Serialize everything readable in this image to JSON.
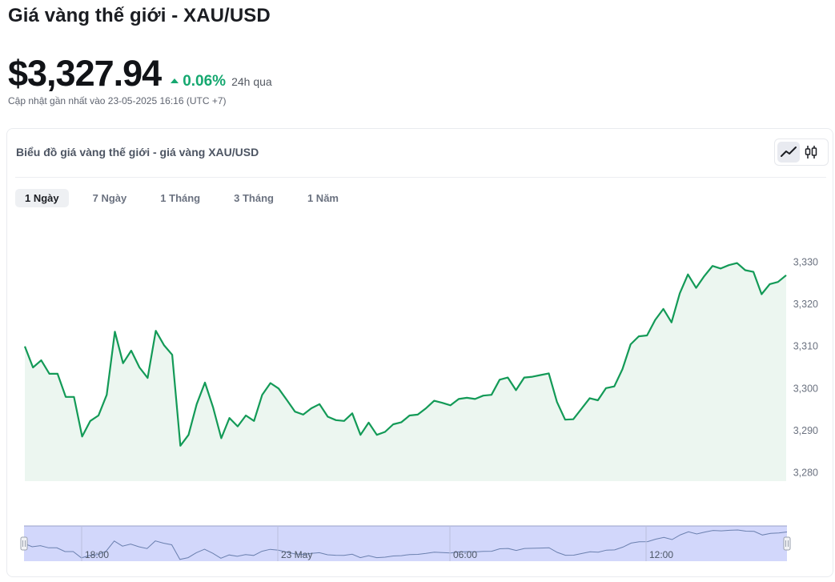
{
  "header": {
    "title": "Giá vàng thế giới - XAU/USD",
    "price": "$3,327.94",
    "change": "0.06%",
    "period": "24h qua",
    "updated": "Cập nhật gần nhất vào 23-05-2025 16:16 (UTC +7)"
  },
  "card": {
    "title": "Biểu đồ giá vàng thế giới - giá vàng XAU/USD",
    "tabs": [
      "1 Ngày",
      "7 Ngày",
      "1 Tháng",
      "3 Tháng",
      "1 Năm"
    ],
    "active_tab": 0,
    "chart_modes": [
      "line-chart-icon",
      "candlestick-icon"
    ]
  },
  "colors": {
    "line": "#139a57",
    "area": "#ecf6f0",
    "up": "#16a870",
    "navigator_fill": "#d2d7fb",
    "navigator_border": "#9aa2c9"
  },
  "chart_data": {
    "type": "area",
    "title": "",
    "xlabel": "",
    "ylabel": "",
    "ylim": [
      3278,
      3333
    ],
    "y_ticks": [
      3280,
      3290,
      3300,
      3310,
      3320,
      3330
    ],
    "y_tick_labels": [
      "3,280",
      "3,290",
      "3,300",
      "3,310",
      "3,320",
      "3,330"
    ],
    "series": [
      {
        "values": [
          3310,
          3305,
          3306.7,
          3303.5,
          3303.5,
          3298,
          3298,
          3288.6,
          3292.3,
          3293.6,
          3298.5,
          3313.5,
          3306,
          3309,
          3305,
          3302.5,
          3313.7,
          3310.3,
          3308,
          3286.4,
          3289,
          3296.3,
          3301.4,
          3295.5,
          3288.2,
          3293,
          3291,
          3293.6,
          3292.3,
          3298.5,
          3301.3,
          3300,
          3297.3,
          3294.5,
          3293.8,
          3295.3,
          3296.3,
          3293.3,
          3292.5,
          3292.3,
          3294.1,
          3289,
          3291.9,
          3289,
          3289.7,
          3291.5,
          3292,
          3293.6,
          3293.8,
          3295.3,
          3297.1,
          3296.6,
          3296,
          3297.5,
          3297.8,
          3297.5,
          3298.3,
          3298.5,
          3302.1,
          3302.6,
          3299.6,
          3302.6,
          3302.8,
          3303.2,
          3303.6,
          3296.8,
          3292.6,
          3292.7,
          3295.2,
          3297.7,
          3297.2,
          3300.1,
          3300.5,
          3304.6,
          3310.5,
          3312.4,
          3312.6,
          3316.3,
          3318.9,
          3315.7,
          3322.6,
          3327.1,
          3323.9,
          3326.7,
          3329.1,
          3328.5,
          3329.3,
          3329.8,
          3328.1,
          3327.7,
          3322.4,
          3324.8,
          3325.3,
          3326.9
        ]
      }
    ],
    "navigator_labels": [
      "18:00",
      "23 May",
      "06:00",
      "12:00"
    ],
    "grid": false
  }
}
